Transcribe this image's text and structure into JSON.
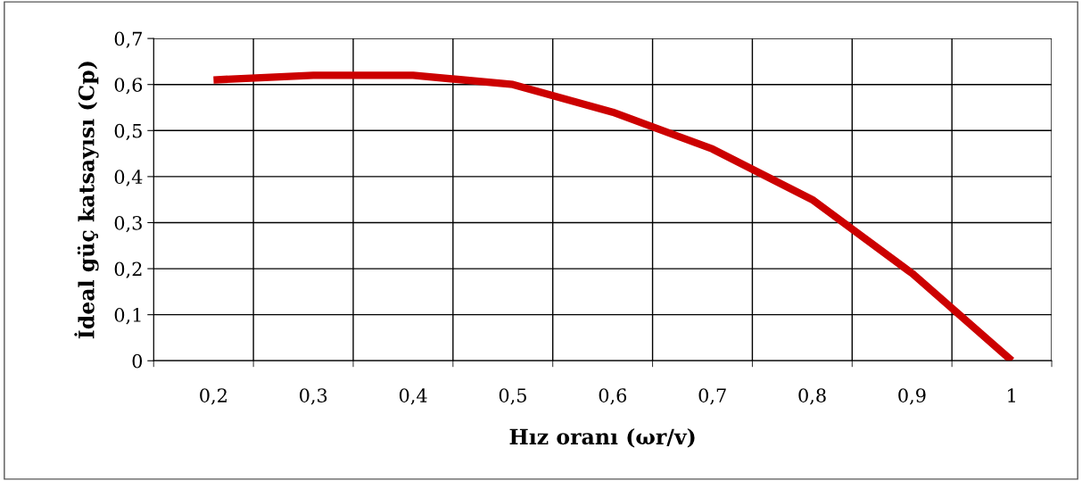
{
  "chart_data": {
    "type": "line",
    "xlabel": "Hız oranı (ωr/v)",
    "ylabel": "İdeal güç katsayısı (Cp)",
    "categories": [
      "0,2",
      "0,3",
      "0,4",
      "0,5",
      "0,6",
      "0,7",
      "0,8",
      "0,9",
      "1"
    ],
    "series": [
      {
        "color": "#cc0000",
        "values": [
          0.61,
          0.62,
          0.62,
          0.6,
          0.54,
          0.46,
          0.35,
          0.19,
          0.0
        ]
      }
    ],
    "ylim": [
      0,
      0.7
    ],
    "yticks": [
      {
        "value": 0,
        "label": "0"
      },
      {
        "value": 0.1,
        "label": "0,1"
      },
      {
        "value": 0.2,
        "label": "0,2"
      },
      {
        "value": 0.3,
        "label": "0,3"
      },
      {
        "value": 0.4,
        "label": "0,4"
      },
      {
        "value": 0.5,
        "label": "0,5"
      },
      {
        "value": 0.6,
        "label": "0,6"
      },
      {
        "value": 0.7,
        "label": "0,7"
      }
    ],
    "grid": true,
    "marker": "none",
    "line_style": "solid"
  }
}
